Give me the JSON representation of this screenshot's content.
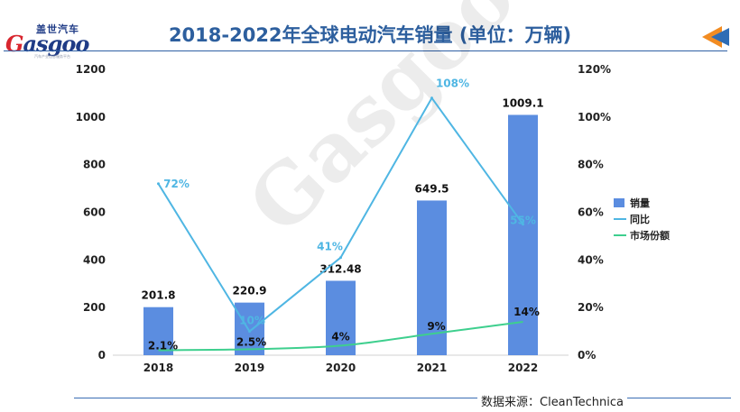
{
  "header": {
    "title": "2018-2022年全球电动汽车销量 (单位：万辆)",
    "logo_cn": "盖世汽车",
    "logo_en_prefix": "G",
    "logo_en_rest": "asgoo",
    "logo_sub": "汽车产业信息服务平台"
  },
  "footer": {
    "source": "数据来源：CleanTechnica"
  },
  "watermark": {
    "text": "Gasgoo"
  },
  "colors": {
    "bar": "#5b8de0",
    "yoy": "#4fb6e3",
    "share": "#3ecf8e",
    "title": "#2d5f9e",
    "icon_orange": "#f28c22",
    "icon_blue": "#2f6db5"
  },
  "chart_data": {
    "type": "bar",
    "categories": [
      "2018",
      "2019",
      "2020",
      "2021",
      "2022"
    ],
    "series": [
      {
        "name": "销量",
        "type": "bar",
        "axis": "left",
        "values": [
          201.8,
          220.9,
          312.48,
          649.5,
          1009.1
        ],
        "labels": [
          "201.8",
          "220.9",
          "312.48",
          "649.5",
          "1009.1"
        ]
      },
      {
        "name": "同比",
        "type": "line",
        "axis": "right",
        "values": [
          72,
          10,
          41,
          108,
          55
        ],
        "labels": [
          "72%",
          "10%",
          "41%",
          "108%",
          "55%"
        ]
      },
      {
        "name": "市场份额",
        "type": "line",
        "axis": "right",
        "values": [
          2.1,
          2.5,
          4,
          9,
          14
        ],
        "labels": [
          "2.1%",
          "2.5%",
          "4%",
          "9%",
          "14%"
        ]
      }
    ],
    "y_left": {
      "min": 0,
      "max": 1200,
      "ticks": [
        "0",
        "200",
        "400",
        "600",
        "800",
        "1000",
        "1200"
      ],
      "tick_values": [
        0,
        200,
        400,
        600,
        800,
        1000,
        1200
      ]
    },
    "y_right": {
      "min": 0,
      "max": 120,
      "ticks": [
        "0%",
        "20%",
        "40%",
        "60%",
        "80%",
        "100%",
        "120%"
      ],
      "tick_values": [
        0,
        20,
        40,
        60,
        80,
        100,
        120
      ]
    },
    "legend_position": "right",
    "grid": false
  }
}
